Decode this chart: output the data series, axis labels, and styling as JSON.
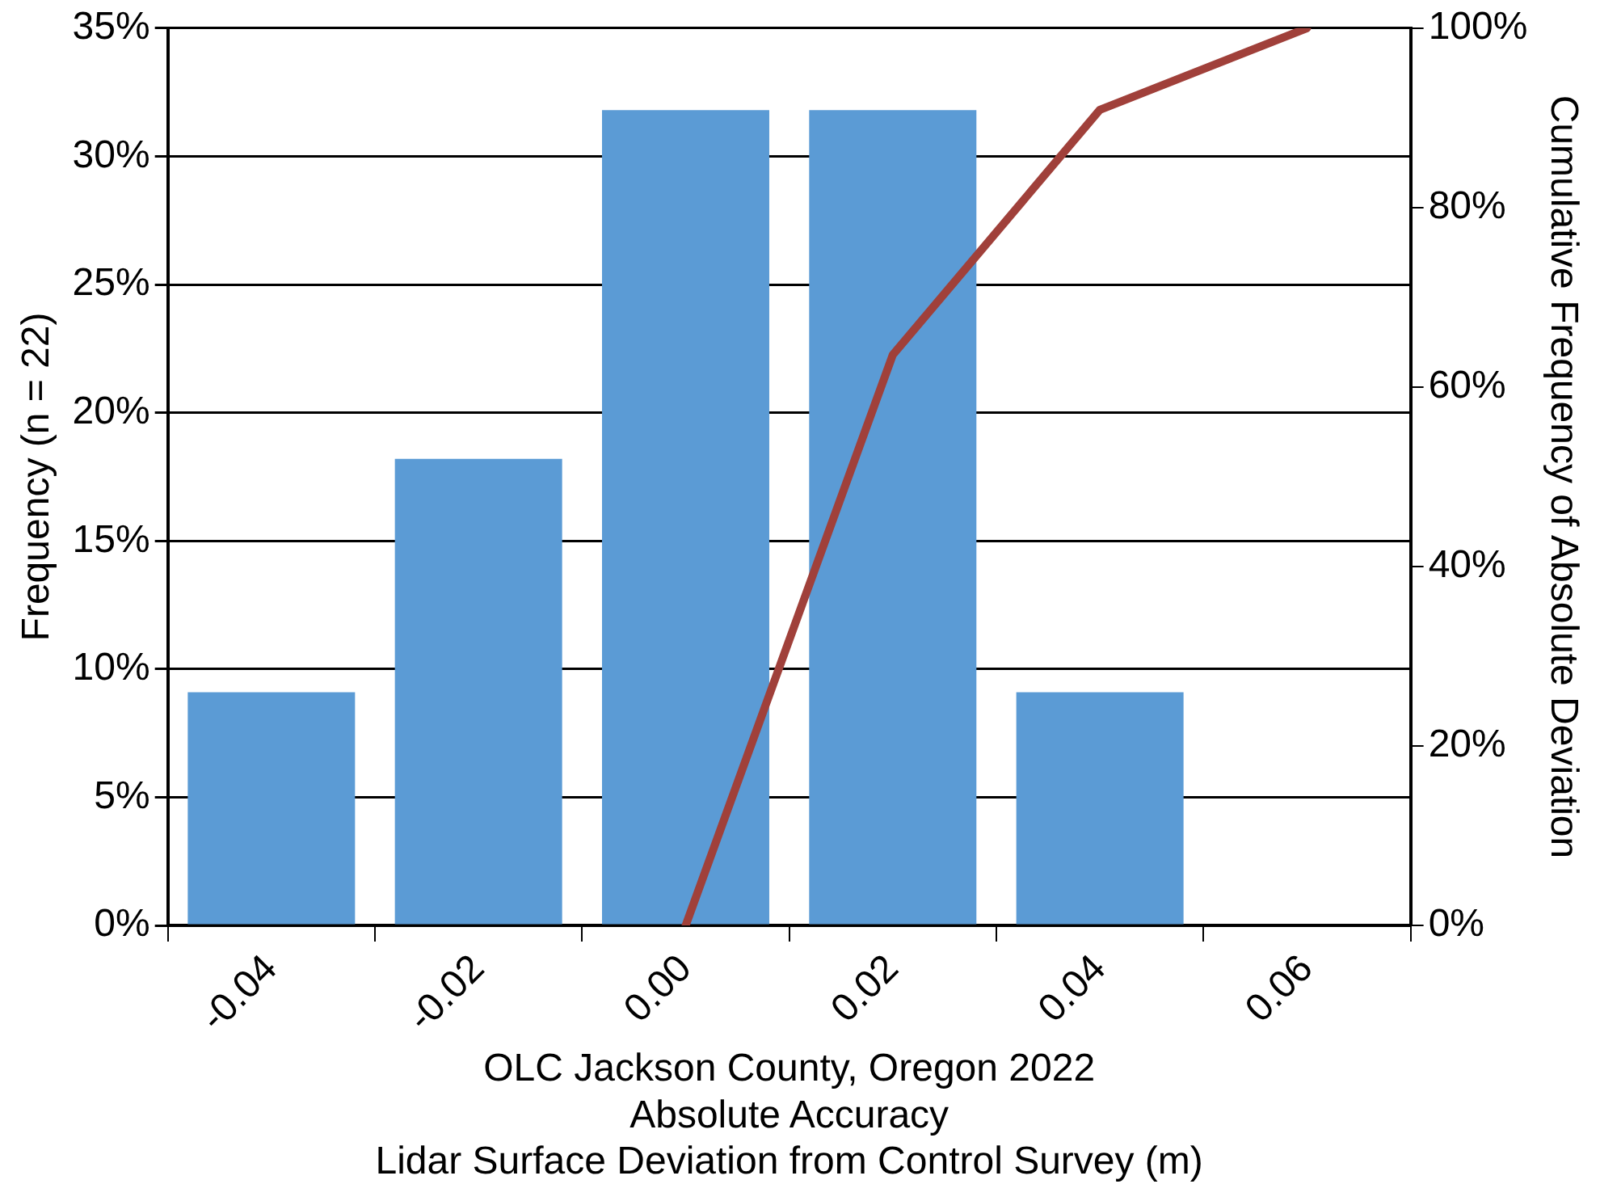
{
  "chart_data": {
    "type": "bar",
    "xlabel": "OLC Jackson County, Oregon 2022\nAbsolute Accuracy\nLidar Surface Deviation from Control Survey (m)",
    "ylabel": "Frequency (n = 22)",
    "y2label": "Cumulative Frequency of Absolute Deviation",
    "categories": [
      "-0.04",
      "-0.02",
      "0.00",
      "0.02",
      "0.04",
      "0.06"
    ],
    "series": [
      {
        "color": "#5b9bd5",
        "values": [
          9.1,
          18.2,
          31.8,
          31.8,
          9.1,
          null
        ]
      },
      {
        "type": "line",
        "axis": "y2",
        "color": "#a0403a",
        "values": [
          null,
          null,
          0,
          63.6,
          90.9,
          100
        ]
      }
    ],
    "ylim": [
      0,
      35
    ],
    "yticks": [
      {
        "value": 0,
        "label": "0%"
      },
      {
        "value": 5,
        "label": "5%"
      },
      {
        "value": 10,
        "label": "10%"
      },
      {
        "value": 15,
        "label": "15%"
      },
      {
        "value": 20,
        "label": "20%"
      },
      {
        "value": 25,
        "label": "25%"
      },
      {
        "value": 30,
        "label": "30%"
      },
      {
        "value": 35,
        "label": "35%"
      }
    ],
    "y2lim": [
      0,
      100
    ],
    "y2ticks": [
      {
        "value": 0,
        "label": "0%"
      },
      {
        "value": 20,
        "label": "20%"
      },
      {
        "value": 40,
        "label": "40%"
      },
      {
        "value": 60,
        "label": "60%"
      },
      {
        "value": 80,
        "label": "80%"
      },
      {
        "value": 100,
        "label": "100%"
      }
    ],
    "grid": "y",
    "legend": false,
    "marker": "none",
    "line_style": "solid"
  }
}
